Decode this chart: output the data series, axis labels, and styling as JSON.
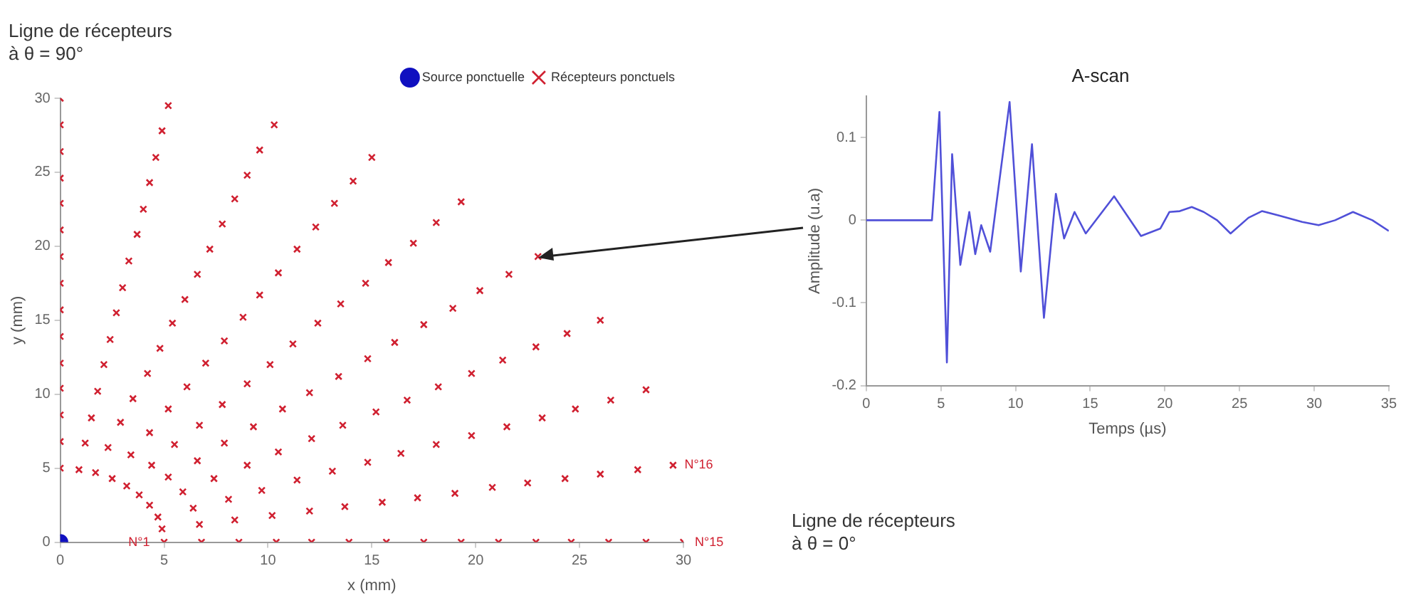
{
  "chart_data": [
    {
      "type": "scatter",
      "xlabel": "x (mm)",
      "ylabel": "y (mm)",
      "xlim": [
        0,
        30
      ],
      "ylim": [
        0,
        30
      ],
      "xticks": [
        0,
        5,
        10,
        15,
        20,
        25,
        30
      ],
      "yticks": [
        0,
        5,
        10,
        15,
        20,
        25,
        30
      ],
      "grid": false,
      "legend": "top right",
      "annotations": [
        "Ligne de récepteurs\nà θ = 90°",
        "Ligne de récepteurs\nà θ = 0°",
        {
          "text": "N°1",
          "x": 5,
          "y": 0
        },
        {
          "text": "N°15",
          "x": 30,
          "y": 0
        },
        {
          "text": "N°16",
          "x": 29.5,
          "y": 5.2
        }
      ],
      "series": [
        {
          "name": "Source ponctuelle",
          "color": "#1010c0",
          "marker": "circle",
          "x": [
            0
          ],
          "values": [
            0
          ]
        },
        {
          "name": "Récepteurs ponctuels",
          "color": "#d02030",
          "marker": "cross",
          "x": [
            5,
            6.8,
            8.6,
            10.4,
            12.1,
            13.9,
            15.7,
            17.5,
            19.3,
            21.1,
            22.9,
            24.6,
            26.4,
            28.2,
            30,
            4.9,
            6.7,
            8.4,
            10.2,
            12.0,
            13.7,
            15.5,
            17.2,
            19.0,
            20.8,
            22.5,
            24.3,
            26.0,
            27.8,
            29.5,
            4.7,
            6.4,
            8.1,
            9.7,
            11.4,
            13.1,
            14.8,
            16.4,
            18.1,
            19.8,
            21.5,
            23.2,
            24.8,
            26.5,
            28.2,
            4.3,
            5.9,
            7.4,
            9.0,
            10.5,
            12.1,
            13.6,
            15.2,
            16.7,
            18.2,
            19.8,
            21.3,
            22.9,
            24.4,
            26.0,
            3.8,
            5.2,
            6.6,
            7.9,
            9.3,
            10.7,
            12.0,
            13.4,
            14.8,
            16.1,
            17.5,
            18.9,
            20.2,
            21.6,
            23.0,
            3.2,
            4.4,
            5.5,
            6.7,
            7.8,
            9.0,
            10.1,
            11.2,
            12.4,
            13.5,
            14.7,
            15.8,
            17.0,
            18.1,
            19.3,
            2.5,
            3.4,
            4.3,
            5.2,
            6.1,
            7.0,
            7.9,
            8.8,
            9.6,
            10.5,
            11.4,
            12.3,
            13.2,
            14.1,
            15.0,
            1.7,
            2.3,
            2.9,
            3.5,
            4.2,
            4.8,
            5.4,
            6.0,
            6.6,
            7.2,
            7.8,
            8.4,
            9.0,
            9.6,
            10.3,
            0.9,
            1.2,
            1.5,
            1.8,
            2.1,
            2.4,
            2.7,
            3.0,
            3.3,
            3.7,
            4.0,
            4.3,
            4.6,
            4.9,
            5.2,
            0,
            0,
            0,
            0,
            0,
            0,
            0,
            0,
            0,
            0,
            0,
            0,
            0,
            0,
            0
          ],
          "values": [
            0,
            0,
            0,
            0,
            0,
            0,
            0,
            0,
            0,
            0,
            0,
            0,
            0,
            0,
            0,
            0.9,
            1.2,
            1.5,
            1.8,
            2.1,
            2.4,
            2.7,
            3.0,
            3.3,
            3.7,
            4.0,
            4.3,
            4.6,
            4.9,
            5.2,
            1.7,
            2.3,
            2.9,
            3.5,
            4.2,
            4.8,
            5.4,
            6.0,
            6.6,
            7.2,
            7.8,
            8.4,
            9.0,
            9.6,
            10.3,
            2.5,
            3.4,
            4.3,
            5.2,
            6.1,
            7.0,
            7.9,
            8.8,
            9.6,
            10.5,
            11.4,
            12.3,
            13.2,
            14.1,
            15.0,
            3.2,
            4.4,
            5.5,
            6.7,
            7.8,
            9.0,
            10.1,
            11.2,
            12.4,
            13.5,
            14.7,
            15.8,
            17.0,
            18.1,
            19.3,
            3.8,
            5.2,
            6.6,
            7.9,
            9.3,
            10.7,
            12.0,
            13.4,
            14.8,
            16.1,
            17.5,
            18.9,
            20.2,
            21.6,
            23.0,
            4.3,
            5.9,
            7.4,
            9.0,
            10.5,
            12.1,
            13.6,
            15.2,
            16.7,
            18.2,
            19.8,
            21.3,
            22.9,
            24.4,
            26.0,
            4.7,
            6.4,
            8.1,
            9.7,
            11.4,
            13.1,
            14.8,
            16.4,
            18.1,
            19.8,
            21.5,
            23.2,
            24.8,
            26.5,
            28.2,
            4.9,
            6.7,
            8.4,
            10.2,
            12.0,
            13.7,
            15.5,
            17.2,
            19.0,
            20.8,
            22.5,
            24.3,
            26.0,
            27.8,
            29.5,
            5,
            6.8,
            8.6,
            10.4,
            12.1,
            13.9,
            15.7,
            17.5,
            19.3,
            21.1,
            22.9,
            24.6,
            26.4,
            28.2,
            30
          ]
        }
      ]
    },
    {
      "type": "line",
      "title": "A-scan",
      "xlabel": "Temps (µs)",
      "ylabel": "Amplitude (u.a)",
      "xlim": [
        0,
        35
      ],
      "ylim": [
        -0.2,
        0.15
      ],
      "xticks": [
        0,
        5,
        10,
        15,
        20,
        25,
        30,
        35
      ],
      "yticks": [
        -0.2,
        -0.1,
        0,
        0.1
      ],
      "grid": false,
      "marker": "none",
      "series": [
        {
          "color": "#5050d8",
          "x": [
            0,
            4.4,
            4.9,
            5.4,
            5.75,
            6.3,
            6.9,
            7.3,
            7.7,
            8.3,
            9.6,
            10.35,
            11.1,
            11.9,
            12.7,
            13.25,
            13.95,
            14.7,
            16.6,
            18.4,
            19.7,
            20.3,
            21,
            21.8,
            22.6,
            23.5,
            24.4,
            25.6,
            26.5,
            27.6,
            29.2,
            30.3,
            31.4,
            32.6,
            33.9,
            35
          ],
          "values": [
            0,
            0,
            0.131,
            -0.172,
            0.08,
            -0.054,
            0.01,
            -0.041,
            -0.006,
            -0.038,
            0.143,
            -0.062,
            0.092,
            -0.118,
            0.032,
            -0.022,
            0.01,
            -0.016,
            0.029,
            -0.019,
            -0.01,
            0.01,
            0.011,
            0.016,
            0.01,
            0,
            -0.016,
            0.003,
            0.011,
            0.006,
            -0.002,
            -0.006,
            0,
            0.01,
            0,
            -0.013
          ]
        }
      ]
    }
  ]
}
